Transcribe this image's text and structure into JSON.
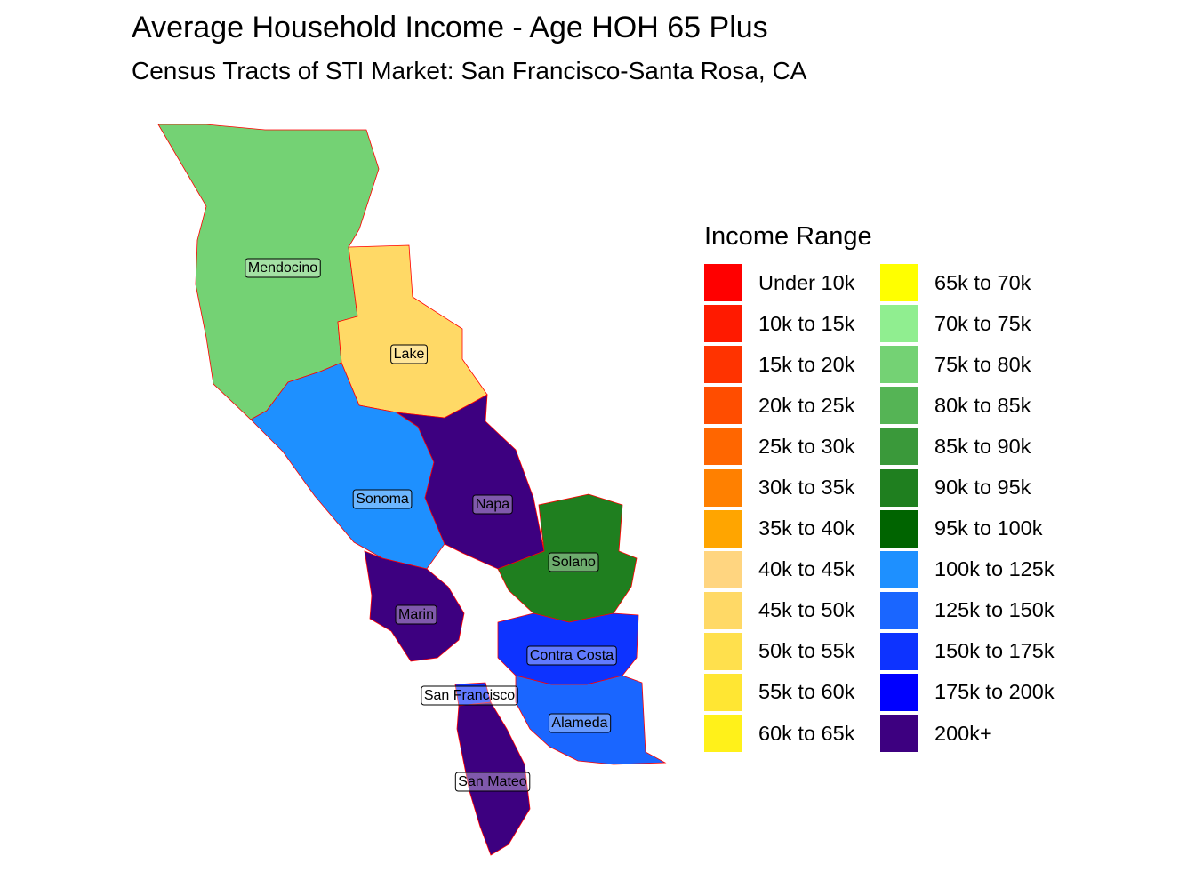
{
  "title": "Average Household Income - Age HOH 65 Plus",
  "subtitle": "Census Tracts of STI Market: San Francisco-Santa Rosa, CA",
  "legend": {
    "title": "Income Range",
    "items": [
      {
        "label": "Under 10k",
        "color": "#ff0000"
      },
      {
        "label": "10k to 15k",
        "color": "#ff1a00"
      },
      {
        "label": "15k to 20k",
        "color": "#ff3300"
      },
      {
        "label": "20k to 25k",
        "color": "#ff4d00"
      },
      {
        "label": "25k to 30k",
        "color": "#ff6600"
      },
      {
        "label": "30k to 35k",
        "color": "#ff8000"
      },
      {
        "label": "35k to 40k",
        "color": "#ffa500"
      },
      {
        "label": "40k to 45k",
        "color": "#ffd580"
      },
      {
        "label": "45k to 50k",
        "color": "#ffd966"
      },
      {
        "label": "50k to 55k",
        "color": "#ffe04d"
      },
      {
        "label": "55k to 60k",
        "color": "#ffe633"
      },
      {
        "label": "60k to 65k",
        "color": "#fff11a"
      },
      {
        "label": "65k to 70k",
        "color": "#ffff00"
      },
      {
        "label": "70k to 75k",
        "color": "#90ee90"
      },
      {
        "label": "75k to 80k",
        "color": "#74d274"
      },
      {
        "label": "80k to 85k",
        "color": "#55b455"
      },
      {
        "label": "85k to 90k",
        "color": "#3a993a"
      },
      {
        "label": "90k to 95k",
        "color": "#1f7f1f"
      },
      {
        "label": "95k to 100k",
        "color": "#006400"
      },
      {
        "label": "100k to 125k",
        "color": "#1e90ff"
      },
      {
        "label": "125k to 150k",
        "color": "#1a66ff"
      },
      {
        "label": "150k to 175k",
        "color": "#0d33ff"
      },
      {
        "label": "175k to 200k",
        "color": "#0000ff"
      },
      {
        "label": "200k+",
        "color": "#3d0080"
      }
    ]
  },
  "counties": [
    {
      "name": "Mendocino",
      "range": "75k to 80k"
    },
    {
      "name": "Lake",
      "range": "45k to 50k"
    },
    {
      "name": "Sonoma",
      "range": "100k to 125k"
    },
    {
      "name": "Napa",
      "range": "200k+"
    },
    {
      "name": "Solano",
      "range": "90k to 95k"
    },
    {
      "name": "Marin",
      "range": "200k+"
    },
    {
      "name": "Contra Costa",
      "range": "150k to 175k"
    },
    {
      "name": "San Francisco",
      "range": "150k to 175k"
    },
    {
      "name": "Alameda",
      "range": "125k to 150k"
    },
    {
      "name": "San Mateo",
      "range": "200k+"
    }
  ]
}
